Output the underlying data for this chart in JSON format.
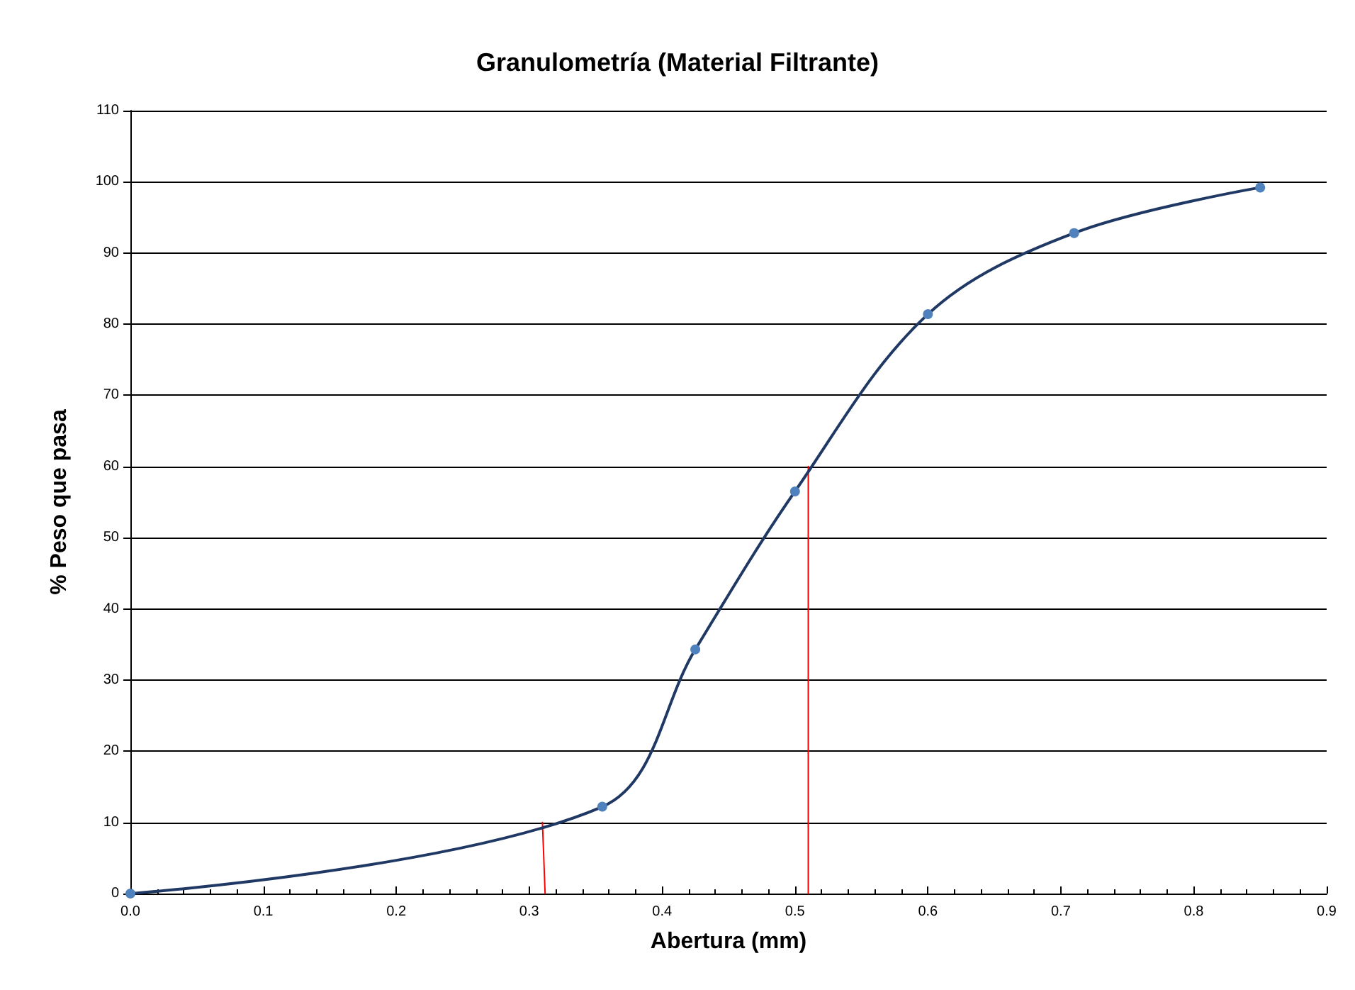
{
  "chart_data": {
    "type": "line",
    "title": "Granulometría (Material Filtrante)",
    "xlabel": "Abertura (mm)",
    "ylabel": "% Peso que pasa",
    "xlim": [
      0,
      0.9
    ],
    "xticks": [
      {
        "value": 0,
        "label": "0.0"
      },
      0.1,
      0.2,
      0.3,
      0.4,
      0.5,
      0.6,
      0.7,
      0.8,
      0.9
    ],
    "ylim": [
      0,
      110
    ],
    "yticks": [
      0,
      10,
      20,
      30,
      40,
      50,
      60,
      70,
      80,
      90,
      100,
      110
    ],
    "grid": "y",
    "marker": "circle",
    "series": [
      {
        "color": "#1f3864",
        "x": [
          0,
          0.355,
          0.425,
          0.5,
          0.6,
          0.71,
          0.85
        ],
        "values": [
          0,
          12.2,
          34.3,
          56.5,
          81.4,
          92.8,
          99.2
        ]
      },
      {
        "type": "line",
        "color": "#ff0000",
        "marker": "none",
        "x": [
          0.312,
          0.31
        ],
        "values": [
          0,
          10
        ]
      },
      {
        "type": "line",
        "color": "#ff0000",
        "marker": "none",
        "x": [
          0.51,
          0.51
        ],
        "values": [
          0,
          60
        ]
      }
    ]
  }
}
